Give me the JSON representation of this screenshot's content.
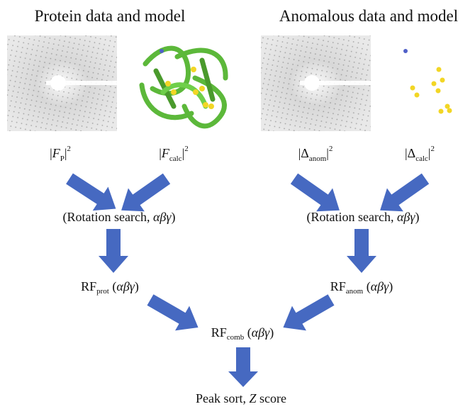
{
  "titles": [
    "Protein data and model",
    "Anomalous data and model"
  ],
  "labels": [
    {
      "bar": "|",
      "symbol": "F",
      "sub": "P",
      "sup": "2"
    },
    {
      "bar": "|",
      "symbol": "F",
      "sub": "calc",
      "sup": "2"
    },
    {
      "bar": "|",
      "symbol": "Δ",
      "sub": "anom",
      "sup": "2"
    },
    {
      "bar": "|",
      "symbol": "Δ",
      "sub": "calc",
      "sup": "2"
    }
  ],
  "searches": [
    {
      "text": "(Rotation search, ",
      "greek": "αβγ",
      "close": ")"
    },
    {
      "text": "(Rotation search, ",
      "greek": "αβγ",
      "close": ")"
    }
  ],
  "functions": [
    {
      "main": "RF",
      "sub": "prot",
      "open": " (",
      "greek": "αβγ",
      "close": ")"
    },
    {
      "main": "RF",
      "sub": "anom",
      "open": " (",
      "greek": "αβγ",
      "close": ")"
    },
    {
      "main": "RF",
      "sub": "comb",
      "open": " (",
      "greek": "αβγ",
      "close": ")"
    }
  ],
  "result": {
    "text": "Peak sort, ",
    "italic": "Z",
    "rest": " score"
  }
}
